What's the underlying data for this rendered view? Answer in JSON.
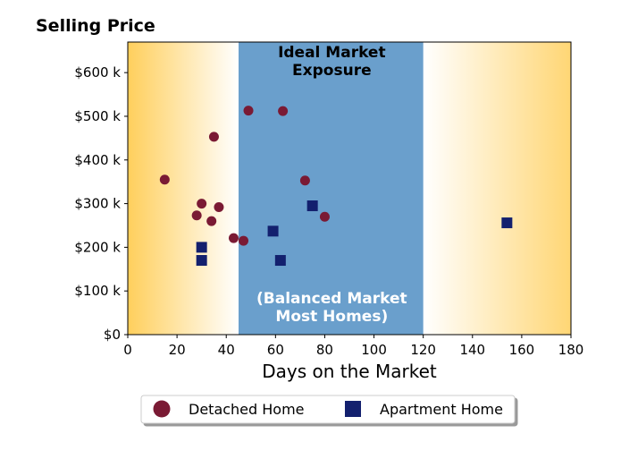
{
  "chart_data": {
    "type": "scatter",
    "title": "Selling Price",
    "xlabel": "Days on the Market",
    "ylabel": "",
    "xlim": [
      0,
      180
    ],
    "ylim": [
      0,
      670000
    ],
    "xticks": [
      0,
      20,
      40,
      60,
      80,
      100,
      120,
      140,
      160,
      180
    ],
    "xtick_labels": [
      "0",
      "20",
      "40",
      "60",
      "80",
      "100",
      "120",
      "140",
      "160",
      "180"
    ],
    "yticks": [
      0,
      100000,
      200000,
      300000,
      400000,
      500000,
      600000
    ],
    "ytick_labels": [
      "$0",
      "$100 k",
      "$200 k",
      "$300 k",
      "$400 k",
      "$500 k",
      "$600 k"
    ],
    "grid": false,
    "legend_placement": "bottom-center",
    "band": {
      "x_range": [
        45,
        120
      ],
      "color": "#6a9fcc",
      "top_label_lines": [
        "Ideal Market",
        "Exposure"
      ],
      "bottom_label_lines": [
        "(Balanced Market",
        "Most Homes)"
      ]
    },
    "gradient_color": "#ffcf5c",
    "series": [
      {
        "name": "Detached Home",
        "marker": "circle",
        "color": "#7a1a34",
        "points": [
          [
            15,
            355000
          ],
          [
            28,
            273000
          ],
          [
            30,
            300000
          ],
          [
            34,
            260000
          ],
          [
            35,
            453000
          ],
          [
            37,
            292000
          ],
          [
            43,
            221000
          ],
          [
            47,
            215000
          ],
          [
            49,
            513000
          ],
          [
            63,
            512000
          ],
          [
            72,
            353000
          ],
          [
            80,
            270000
          ]
        ]
      },
      {
        "name": "Apartment Home",
        "marker": "square",
        "color": "#13206e",
        "points": [
          [
            30,
            200000
          ],
          [
            30,
            170000
          ],
          [
            59,
            237000
          ],
          [
            62,
            170000
          ],
          [
            75,
            295000
          ],
          [
            154,
            256000
          ]
        ]
      }
    ]
  }
}
